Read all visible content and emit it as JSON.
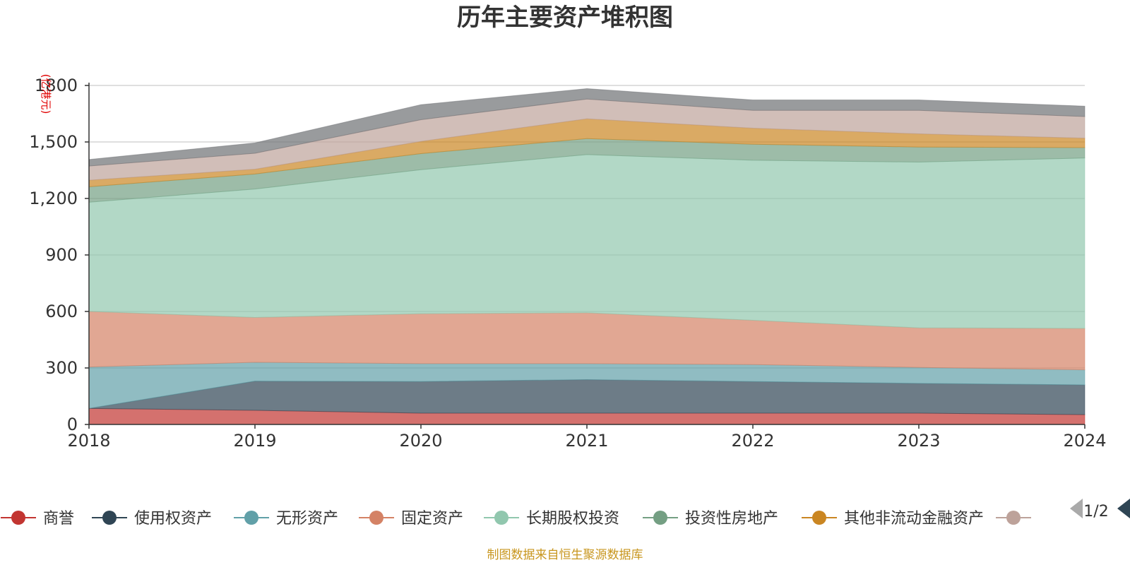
{
  "chart_data": {
    "type": "area",
    "title": "历年主要资产堆积图",
    "ylabel": "(亿港元)",
    "xlabel": "",
    "stacked": true,
    "x": [
      "2018",
      "2019",
      "2020",
      "2021",
      "2022",
      "2023",
      "2024"
    ],
    "ylim": [
      0,
      1800
    ],
    "yticks": [
      0,
      300,
      600,
      900,
      1200,
      1500,
      1800
    ],
    "ytick_labels": [
      "0",
      "300",
      "600",
      "900",
      "1,200",
      "1,500",
      "1800"
    ],
    "grid": true,
    "legend_position": "bottom",
    "series": [
      {
        "name": "商誉",
        "color": "#c23531",
        "values": [
          85,
          75,
          60,
          60,
          60,
          60,
          52
        ]
      },
      {
        "name": "使用权资产",
        "color": "#2f4554",
        "values": [
          0,
          155,
          168,
          178,
          168,
          158,
          158
        ]
      },
      {
        "name": "无形资产",
        "color": "#61a0a8",
        "values": [
          220,
          100,
          95,
          85,
          90,
          85,
          80
        ]
      },
      {
        "name": "固定资产",
        "color": "#d48265",
        "values": [
          295,
          238,
          265,
          270,
          235,
          210,
          220
        ]
      },
      {
        "name": "长期股权投资",
        "color": "#91c7ae",
        "values": [
          580,
          682,
          765,
          840,
          850,
          880,
          905
        ]
      },
      {
        "name": "投资性房地产",
        "color": "#749f83",
        "values": [
          82,
          80,
          85,
          85,
          85,
          80,
          55
        ]
      },
      {
        "name": "其他非流动金融资产",
        "color": "#ca8622",
        "values": [
          35,
          25,
          65,
          105,
          85,
          70,
          50
        ]
      },
      {
        "name": "",
        "color": "#bda29a",
        "values": [
          75,
          85,
          115,
          105,
          95,
          125,
          115
        ]
      },
      {
        "name": "",
        "color": "#6e7074",
        "values": [
          35,
          55,
          80,
          55,
          55,
          55,
          55
        ]
      }
    ]
  },
  "legend": {
    "pager": "1/2",
    "prev_icon": "triangle-left-icon",
    "next_icon": "triangle-right-icon"
  },
  "footer": {
    "source": "制图数据来自恒生聚源数据库"
  }
}
